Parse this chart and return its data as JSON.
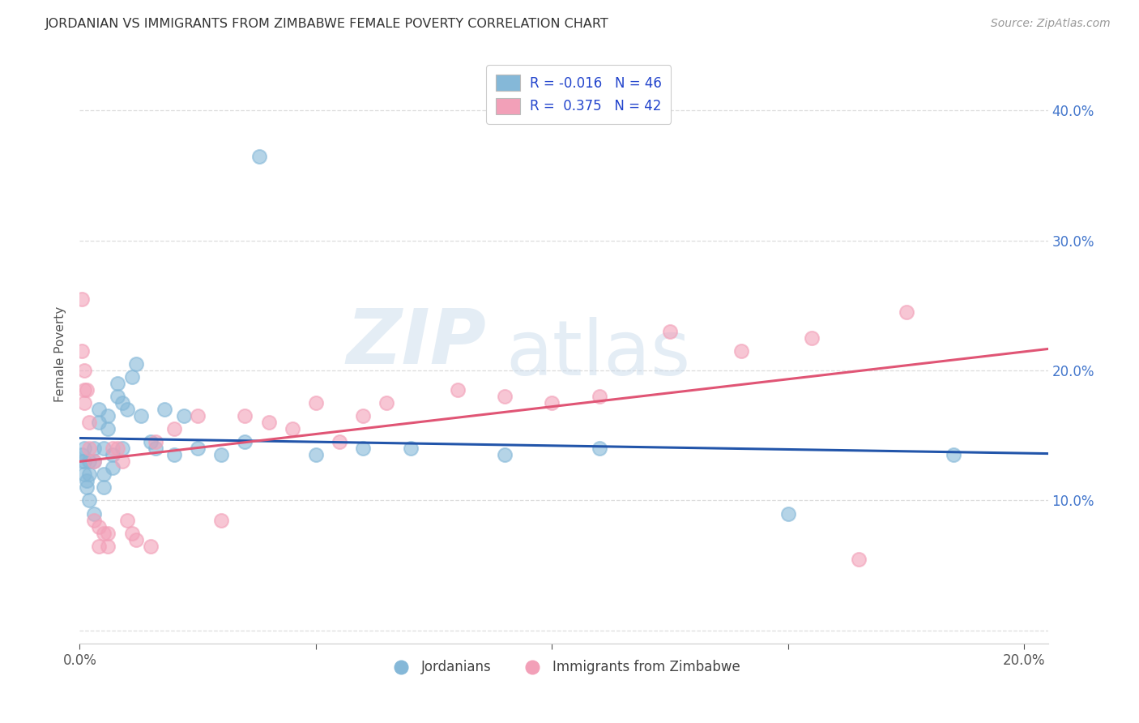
{
  "title": "JORDANIAN VS IMMIGRANTS FROM ZIMBABWE FEMALE POVERTY CORRELATION CHART",
  "source": "Source: ZipAtlas.com",
  "ylabel": "Female Poverty",
  "xlim": [
    0.0,
    0.205
  ],
  "ylim": [
    -0.01,
    0.435
  ],
  "xtick_pos": [
    0.0,
    0.05,
    0.1,
    0.15,
    0.2
  ],
  "xtick_labels": [
    "0.0%",
    "",
    "",
    "",
    "20.0%"
  ],
  "ytick_pos": [
    0.0,
    0.1,
    0.2,
    0.3,
    0.4
  ],
  "ytick_labels_right": [
    "",
    "10.0%",
    "20.0%",
    "30.0%",
    "40.0%"
  ],
  "legend_labels": [
    "Jordanians",
    "Immigrants from Zimbabwe"
  ],
  "legend_r_jordan": "-0.016",
  "legend_n_jordan": "46",
  "legend_r_zimb": "0.375",
  "legend_n_zimb": "42",
  "color_jordan": "#85B8D8",
  "color_zimb": "#F2A0B8",
  "line_color_jordan": "#2255AA",
  "line_color_zimb": "#E05575",
  "jordan_x": [
    0.0005,
    0.0005,
    0.001,
    0.001,
    0.001,
    0.0015,
    0.0015,
    0.002,
    0.002,
    0.002,
    0.003,
    0.003,
    0.003,
    0.004,
    0.004,
    0.005,
    0.005,
    0.005,
    0.006,
    0.006,
    0.007,
    0.007,
    0.008,
    0.008,
    0.009,
    0.009,
    0.01,
    0.011,
    0.012,
    0.013,
    0.015,
    0.016,
    0.018,
    0.02,
    0.022,
    0.025,
    0.03,
    0.035,
    0.038,
    0.05,
    0.06,
    0.07,
    0.09,
    0.11,
    0.15,
    0.185
  ],
  "jordan_y": [
    0.135,
    0.13,
    0.14,
    0.13,
    0.12,
    0.115,
    0.11,
    0.13,
    0.12,
    0.1,
    0.14,
    0.13,
    0.09,
    0.17,
    0.16,
    0.14,
    0.12,
    0.11,
    0.165,
    0.155,
    0.135,
    0.125,
    0.19,
    0.18,
    0.175,
    0.14,
    0.17,
    0.195,
    0.205,
    0.165,
    0.145,
    0.14,
    0.17,
    0.135,
    0.165,
    0.14,
    0.135,
    0.145,
    0.365,
    0.135,
    0.14,
    0.14,
    0.135,
    0.14,
    0.09,
    0.135
  ],
  "zimb_x": [
    0.0005,
    0.0005,
    0.001,
    0.001,
    0.001,
    0.0015,
    0.002,
    0.002,
    0.003,
    0.003,
    0.004,
    0.004,
    0.005,
    0.006,
    0.006,
    0.007,
    0.008,
    0.009,
    0.01,
    0.011,
    0.012,
    0.015,
    0.016,
    0.02,
    0.025,
    0.03,
    0.035,
    0.04,
    0.045,
    0.05,
    0.055,
    0.06,
    0.065,
    0.08,
    0.09,
    0.1,
    0.11,
    0.125,
    0.14,
    0.155,
    0.165,
    0.175
  ],
  "zimb_y": [
    0.255,
    0.215,
    0.2,
    0.185,
    0.175,
    0.185,
    0.16,
    0.14,
    0.13,
    0.085,
    0.08,
    0.065,
    0.075,
    0.075,
    0.065,
    0.14,
    0.14,
    0.13,
    0.085,
    0.075,
    0.07,
    0.065,
    0.145,
    0.155,
    0.165,
    0.085,
    0.165,
    0.16,
    0.155,
    0.175,
    0.145,
    0.165,
    0.175,
    0.185,
    0.18,
    0.175,
    0.18,
    0.23,
    0.215,
    0.225,
    0.055,
    0.245
  ],
  "watermark_zip": "ZIP",
  "watermark_atlas": "atlas",
  "background_color": "#FFFFFF",
  "grid_color": "#DDDDDD"
}
